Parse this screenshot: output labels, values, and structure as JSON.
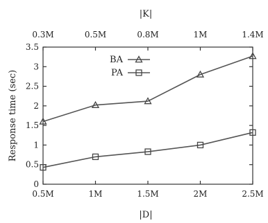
{
  "chart_data": {
    "type": "line",
    "categories": [
      "0.5M",
      "1M",
      "1.5M",
      "2M",
      "2.5M"
    ],
    "top_categories": [
      "0.3M",
      "0.5M",
      "0.8M",
      "1M",
      "1.4M"
    ],
    "xlabel": "|D|",
    "top_xlabel": "|K|",
    "ylabel": "Response time (sec)",
    "ylim": [
      0,
      3.5
    ],
    "yticks": [
      "0",
      "0.5",
      "1",
      "1.5",
      "2",
      "2.5",
      "3",
      "3.5"
    ],
    "legend_position": "top-center",
    "series": [
      {
        "name": "BA",
        "marker": "triangle",
        "values": [
          1.6,
          2.02,
          2.12,
          2.8,
          3.27
        ]
      },
      {
        "name": "PA",
        "marker": "square",
        "values": [
          0.43,
          0.7,
          0.83,
          1.0,
          1.32
        ]
      }
    ]
  }
}
